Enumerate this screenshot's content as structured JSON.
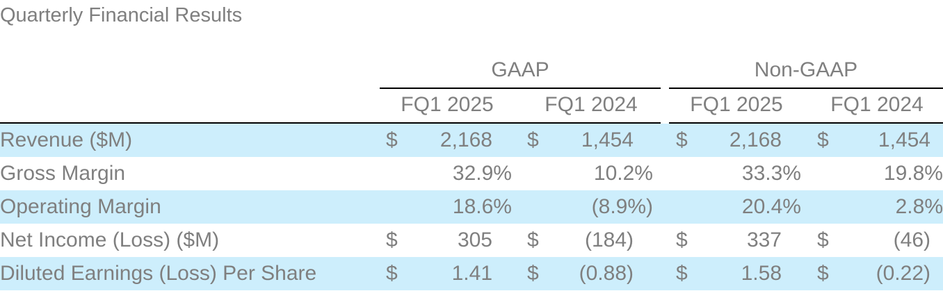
{
  "title": "Quarterly Financial Results",
  "groups": [
    "GAAP",
    "Non-GAAP"
  ],
  "period_headers": [
    "FQ1 2025",
    "FQ1 2024",
    "FQ1 2025",
    "FQ1 2024"
  ],
  "rows": [
    {
      "label": "Revenue ($M)",
      "cells": [
        {
          "cur": "$",
          "val": "2,168"
        },
        {
          "cur": "$",
          "val": "1,454"
        },
        {
          "cur": "$",
          "val": "2,168"
        },
        {
          "cur": "$",
          "val": "1,454"
        }
      ]
    },
    {
      "label": "Gross Margin",
      "cells": [
        {
          "cur": "",
          "val": "32.9%"
        },
        {
          "cur": "",
          "val": "10.2%"
        },
        {
          "cur": "",
          "val": "33.3%"
        },
        {
          "cur": "",
          "val": "19.8%"
        }
      ]
    },
    {
      "label": "Operating Margin",
      "cells": [
        {
          "cur": "",
          "val": "18.6%"
        },
        {
          "cur": "",
          "val": "(8.9%)"
        },
        {
          "cur": "",
          "val": "20.4%"
        },
        {
          "cur": "",
          "val": "2.8%"
        }
      ]
    },
    {
      "label": "Net Income (Loss) ($M)",
      "cells": [
        {
          "cur": "$",
          "val": "305"
        },
        {
          "cur": "$",
          "val": "(184)"
        },
        {
          "cur": "$",
          "val": "337"
        },
        {
          "cur": "$",
          "val": "(46)"
        }
      ]
    },
    {
      "label": "Diluted Earnings (Loss) Per Share",
      "cells": [
        {
          "cur": "$",
          "val": "1.41"
        },
        {
          "cur": "$",
          "val": "(0.88)"
        },
        {
          "cur": "$",
          "val": "1.58"
        },
        {
          "cur": "$",
          "val": "(0.22)"
        }
      ]
    }
  ],
  "colors": {
    "row_highlight": "#cdeefc",
    "text": "#7f7f7f",
    "rule": "#000000"
  }
}
